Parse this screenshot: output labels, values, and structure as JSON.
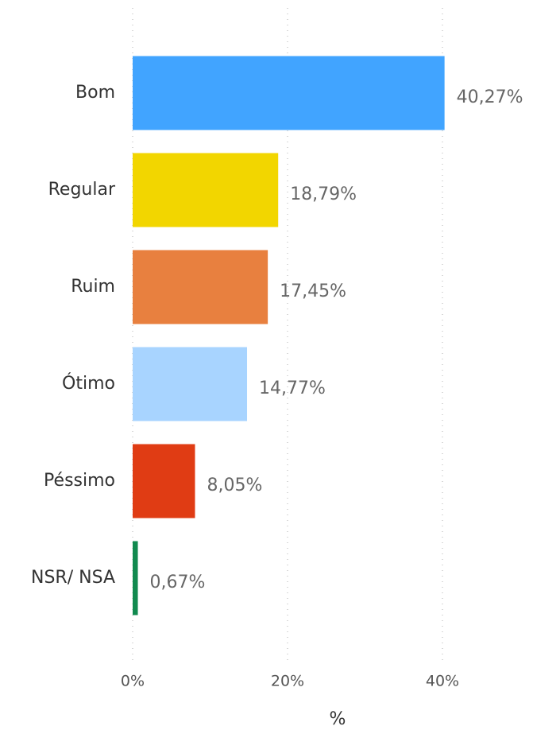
{
  "chart_data": {
    "type": "hbar",
    "categories": [
      "Bom",
      "Regular",
      "Ruim",
      "Ótimo",
      "Péssimo",
      "NSR/ NSA"
    ],
    "values": [
      40.27,
      18.79,
      17.45,
      14.77,
      8.05,
      0.67
    ],
    "value_labels": [
      "40,27%",
      "18,79%",
      "17,45%",
      "14,77%",
      "8,05%",
      "0,67%"
    ],
    "colors": [
      "#41a4ff",
      "#f2d600",
      "#e8803f",
      "#a8d4ff",
      "#e03c14",
      "#118a4f"
    ],
    "xlim": [
      0,
      40
    ],
    "xticks": [
      {
        "value": 0,
        "label": "0%"
      },
      {
        "value": 20,
        "label": "20%"
      },
      {
        "value": 40,
        "label": "40%"
      }
    ],
    "xlabel": "%",
    "grid": true
  }
}
